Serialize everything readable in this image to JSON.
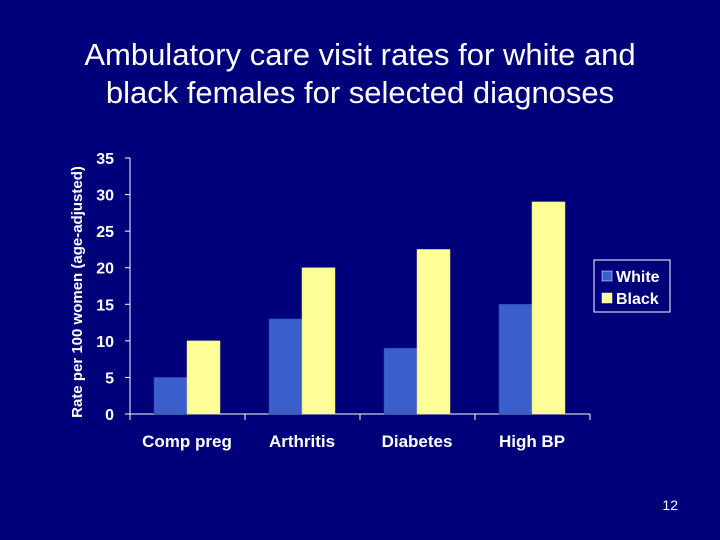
{
  "slide": {
    "title_line1": "Ambulatory care visit rates for white and",
    "title_line2": "black females for selected diagnoses",
    "page_number": "12"
  },
  "colors": {
    "background": "#00007a",
    "white_series": "#3a5fcd",
    "black_series": "#ffff99",
    "text": "#ffffff"
  },
  "chart_data": {
    "type": "bar",
    "title": "Ambulatory care visit rates for white and black females for selected diagnoses",
    "ylabel": "Rate per 100 women (age-adjusted)",
    "xlabel": "",
    "categories": [
      "Comp preg",
      "Arthritis",
      "Diabetes",
      "High BP"
    ],
    "series": [
      {
        "name": "White",
        "values": [
          5,
          13,
          9,
          15
        ]
      },
      {
        "name": "Black",
        "values": [
          10,
          20,
          22.5,
          29
        ]
      }
    ],
    "ylim": [
      0,
      35
    ],
    "yticks": [
      "0",
      "5",
      "10",
      "15",
      "20",
      "25",
      "30",
      "35"
    ],
    "grid": false,
    "legend": "right"
  }
}
